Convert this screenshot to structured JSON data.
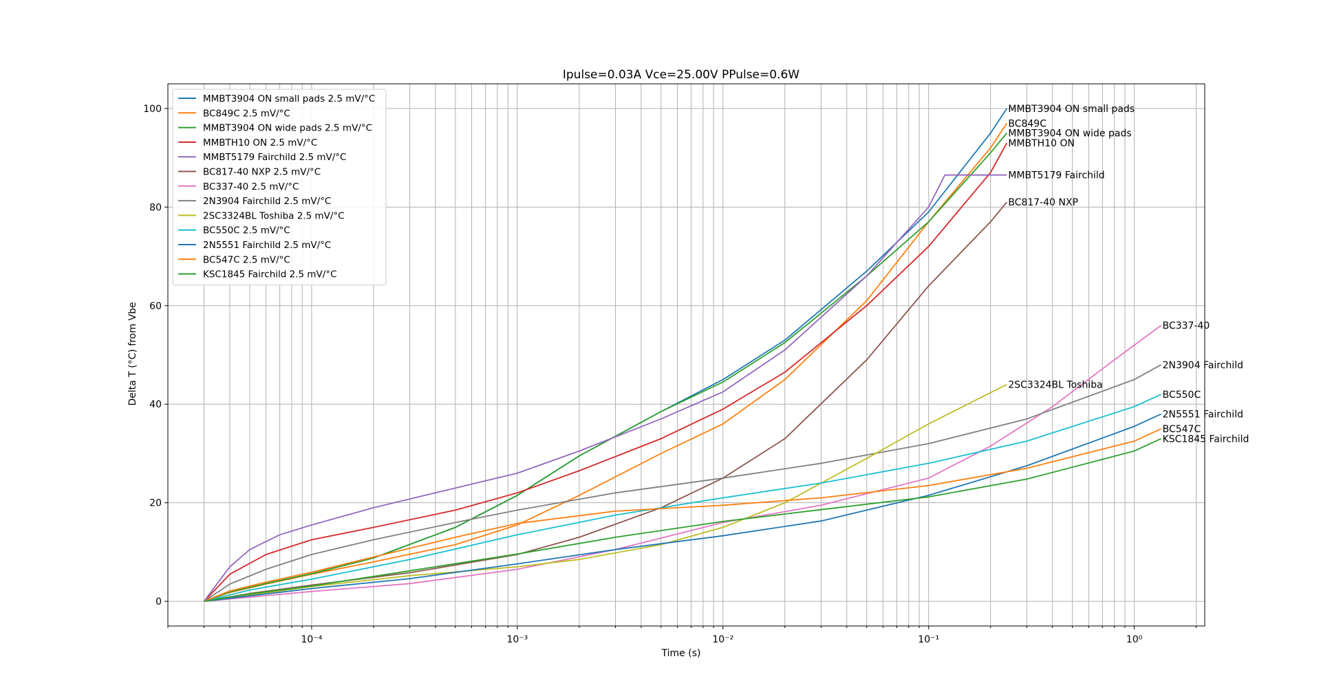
{
  "chart_data": {
    "type": "line",
    "title": "Ipulse=0.03A Vce=25.00V PPulse=0.6W",
    "xlabel": "Time (s)",
    "ylabel": "Delta T (°C) from Vbe",
    "xscale": "log",
    "xlim": [
      2e-05,
      2.2
    ],
    "ylim": [
      -5,
      105
    ],
    "grid": true,
    "legend_position": "top-left",
    "x_tick_labels": [
      "10⁻⁴",
      "10⁻³",
      "10⁻²",
      "10⁻¹",
      "10⁰"
    ],
    "y_ticks": [
      0,
      20,
      40,
      60,
      80,
      100
    ],
    "series": [
      {
        "name": "MMBT3904 ON small pads 2.5 mV/°C",
        "end_label": "MMBT3904 ON small pads",
        "color": "#1f77b4",
        "x": [
          3e-05,
          4e-05,
          6e-05,
          0.0001,
          0.0002,
          0.0005,
          0.001,
          0.002,
          0.005,
          0.01,
          0.02,
          0.05,
          0.1,
          0.2,
          0.24
        ],
        "y": [
          0,
          1.9,
          3.6,
          5.6,
          8.8,
          15,
          21.5,
          29.5,
          38.5,
          45,
          53,
          67,
          79,
          95,
          100
        ]
      },
      {
        "name": "BC849C 2.5 mV/°C",
        "end_label": "BC849C",
        "color": "#ff7f0e",
        "x": [
          3e-05,
          4e-05,
          6e-05,
          0.0001,
          0.0002,
          0.0005,
          0.001,
          0.002,
          0.005,
          0.01,
          0.02,
          0.05,
          0.1,
          0.2,
          0.24
        ],
        "y": [
          0,
          1.8,
          3.5,
          5.5,
          8,
          11.5,
          15.5,
          21.5,
          30,
          36,
          45,
          61,
          77,
          92,
          97
        ]
      },
      {
        "name": "MMBT3904 ON wide pads 2.5 mV/°C",
        "end_label": "MMBT3904 ON wide pads",
        "color": "#2ca02c",
        "x": [
          3e-05,
          4e-05,
          6e-05,
          0.0001,
          0.0002,
          0.0005,
          0.001,
          0.002,
          0.005,
          0.01,
          0.02,
          0.05,
          0.1,
          0.2,
          0.24
        ],
        "y": [
          0,
          1.9,
          3.6,
          5.6,
          8.8,
          15,
          21.5,
          29.5,
          38.5,
          44.5,
          52.5,
          66,
          77,
          91,
          95
        ]
      },
      {
        "name": "MMBTH10 ON 2.5 mV/°C",
        "end_label": "MMBTH10 ON",
        "color": "#d62728",
        "x": [
          3e-05,
          4e-05,
          6e-05,
          0.0001,
          0.0002,
          0.0005,
          0.001,
          0.002,
          0.005,
          0.01,
          0.02,
          0.05,
          0.1,
          0.2,
          0.24
        ],
        "y": [
          0,
          5.5,
          9.5,
          12.5,
          15,
          18.5,
          22,
          26.5,
          33,
          39,
          46.5,
          60,
          72,
          87,
          93
        ]
      },
      {
        "name": "MMBT5179 Fairchild 2.5 mV/°C",
        "end_label": "MMBT5179 Fairchild",
        "color": "#9467bd",
        "x": [
          3e-05,
          4e-05,
          5e-05,
          7e-05,
          0.0001,
          0.0002,
          0.0005,
          0.001,
          0.002,
          0.005,
          0.01,
          0.02,
          0.05,
          0.1,
          0.12,
          0.24
        ],
        "y": [
          0,
          7,
          10.5,
          13.5,
          15.5,
          19,
          23,
          26,
          30.5,
          37,
          42.5,
          51,
          66,
          80,
          86.5,
          86.5
        ]
      },
      {
        "name": "BC817-40 NXP 2.5 mV/°C",
        "end_label": "BC817-40 NXP",
        "color": "#8c564b",
        "x": [
          3e-05,
          5e-05,
          0.0001,
          0.0003,
          0.001,
          0.002,
          0.005,
          0.01,
          0.02,
          0.05,
          0.1,
          0.2,
          0.24
        ],
        "y": [
          0,
          1.6,
          3.3,
          5.8,
          9.5,
          13,
          19,
          25,
          33,
          49,
          64,
          77,
          81
        ]
      },
      {
        "name": "BC337-40 2.5 mV/°C",
        "end_label": "BC337-40",
        "color": "#e377c2",
        "x": [
          3e-05,
          0.0001,
          0.0003,
          0.001,
          0.003,
          0.01,
          0.03,
          0.1,
          0.2,
          0.4,
          0.8,
          1.35
        ],
        "y": [
          0,
          2,
          3.6,
          6.5,
          10.5,
          16,
          19.5,
          25,
          31.5,
          39.5,
          49,
          56
        ]
      },
      {
        "name": "2N3904 Fairchild 2.5 mV/°C",
        "end_label": "2N3904 Fairchild",
        "color": "#7f7f7f",
        "x": [
          3e-05,
          4e-05,
          6e-05,
          0.0001,
          0.0002,
          0.0005,
          0.001,
          0.003,
          0.01,
          0.03,
          0.1,
          0.3,
          1,
          1.35
        ],
        "y": [
          0,
          3.5,
          6.5,
          9.5,
          12.5,
          16,
          18.5,
          22,
          25,
          28,
          32,
          37,
          45,
          48
        ]
      },
      {
        "name": "2SC3324BL Toshiba 2.5 mV/°C",
        "end_label": "2SC3324BL Toshiba",
        "color": "#bcbd22",
        "x": [
          3e-05,
          0.0001,
          0.0003,
          0.001,
          0.002,
          0.005,
          0.01,
          0.02,
          0.05,
          0.1,
          0.24
        ],
        "y": [
          0,
          3,
          5.2,
          7,
          8.5,
          11.5,
          15,
          20,
          29,
          36,
          44
        ]
      },
      {
        "name": "BC550C 2.5 mV/°C",
        "end_label": "BC550C",
        "color": "#17becf",
        "x": [
          3e-05,
          5e-05,
          0.0001,
          0.0003,
          0.001,
          0.003,
          0.01,
          0.03,
          0.1,
          0.3,
          1,
          1.35
        ],
        "y": [
          0,
          2.3,
          4.5,
          8.5,
          13.5,
          17.5,
          21,
          24,
          28,
          32.5,
          39.5,
          42
        ]
      },
      {
        "name": "2N5551 Fairchild 2.5 mV/°C",
        "end_label": "2N5551 Fairchild",
        "color": "#1f77b4",
        "x": [
          3e-05,
          0.0001,
          0.0003,
          0.001,
          0.003,
          0.01,
          0.03,
          0.1,
          0.3,
          1,
          1.35
        ],
        "y": [
          0,
          2.6,
          4.6,
          7.6,
          10.5,
          13.3,
          16.3,
          21.5,
          27.5,
          35.5,
          38
        ]
      },
      {
        "name": "BC547C 2.5 mV/°C",
        "end_label": "BC547C",
        "color": "#ff7f0e",
        "x": [
          3e-05,
          4e-05,
          6e-05,
          0.0001,
          0.0002,
          0.0005,
          0.001,
          0.003,
          0.01,
          0.03,
          0.1,
          0.3,
          1,
          1.35
        ],
        "y": [
          0,
          2.1,
          3.9,
          5.9,
          9,
          13,
          15.8,
          18.3,
          19.5,
          21,
          23.5,
          27,
          32.5,
          35
        ]
      },
      {
        "name": "KSC1845 Fairchild 2.5 mV/°C",
        "end_label": "KSC1845 Fairchild",
        "color": "#2ca02c",
        "x": [
          3e-05,
          5e-05,
          0.0001,
          0.0003,
          0.001,
          0.003,
          0.01,
          0.03,
          0.1,
          0.3,
          1,
          1.35
        ],
        "y": [
          0,
          1.5,
          3.1,
          6.2,
          9.6,
          13,
          16.2,
          18.6,
          21.2,
          24.8,
          30.5,
          33
        ]
      }
    ]
  }
}
